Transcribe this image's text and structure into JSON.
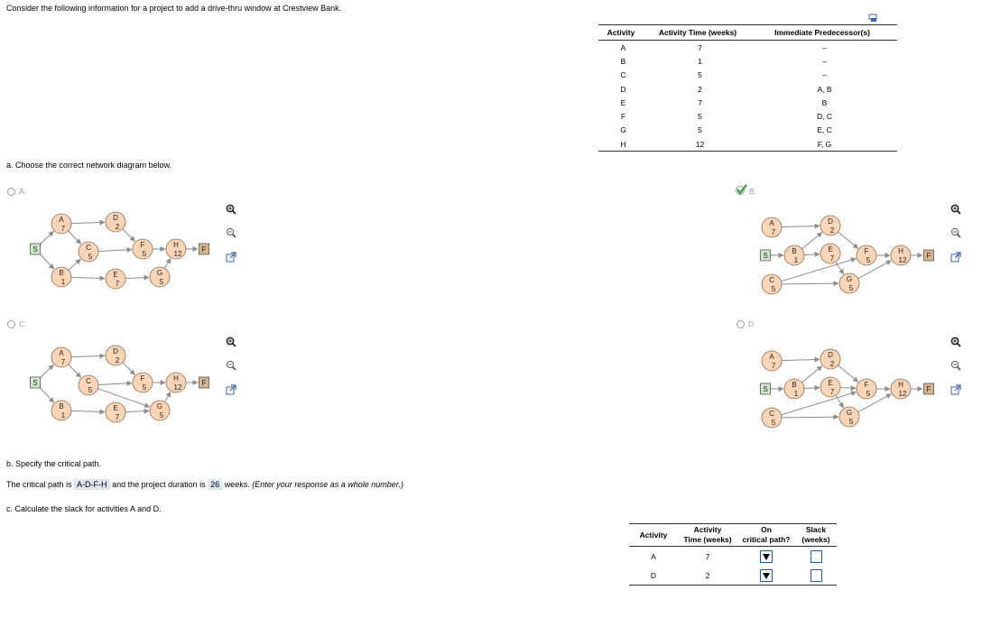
{
  "intro": "Consider the following information for a project to add a drive-thru window at Crestview Bank.",
  "table1": {
    "headers": [
      "Activity",
      "Activity Time (weeks)",
      "Immediate Predecessor(s)"
    ],
    "rows": [
      [
        "A",
        "7",
        "–"
      ],
      [
        "B",
        "1",
        "–"
      ],
      [
        "C",
        "5",
        "–"
      ],
      [
        "D",
        "2",
        "A, B"
      ],
      [
        "E",
        "7",
        "B"
      ],
      [
        "F",
        "5",
        "D, C"
      ],
      [
        "G",
        "5",
        "E, C"
      ],
      [
        "H",
        "12",
        "F, G"
      ]
    ]
  },
  "part_a": {
    "prompt": "a. Choose the correct network diagram below.",
    "options": [
      {
        "label": "A.",
        "selected": false
      },
      {
        "label": "B.",
        "selected": true
      },
      {
        "label": "C.",
        "selected": false
      },
      {
        "label": "D.",
        "selected": false
      }
    ],
    "diagram_labels": {
      "start": "S",
      "finish": "F"
    },
    "nodes": {
      "A": "7",
      "B": "1",
      "C": "5",
      "D": "2",
      "E": "7",
      "F": "5",
      "G": "5",
      "H": "12"
    }
  },
  "part_b": {
    "prompt": "b. Specify the critical path.",
    "sentence_prefix": "The critical path is",
    "critical_path": "A-D-F-H",
    "sentence_middle": "and the project duration is",
    "duration": "26",
    "sentence_suffix": "weeks.",
    "hint": "(Enter your response as a whole number.)"
  },
  "part_c": {
    "prompt": "c. Calculate the slack for activities A and D.",
    "headers": {
      "activity": "Activity",
      "time_line1": "Activity",
      "time_line2": "Time (weeks)",
      "critical_line1": "On",
      "critical_line2": "critical path?",
      "slack_line1": "Slack",
      "slack_line2": "(weeks)"
    },
    "rows": [
      {
        "activity": "A",
        "time": "7"
      },
      {
        "activity": "D",
        "time": "2"
      }
    ]
  },
  "colors": {
    "node_fill": "#fbd5b5",
    "start_fill": "#cfe8cc",
    "finish_fill": "#d7b48f",
    "answer_bg": "#dde6f1",
    "check": "#2e9c2e"
  }
}
